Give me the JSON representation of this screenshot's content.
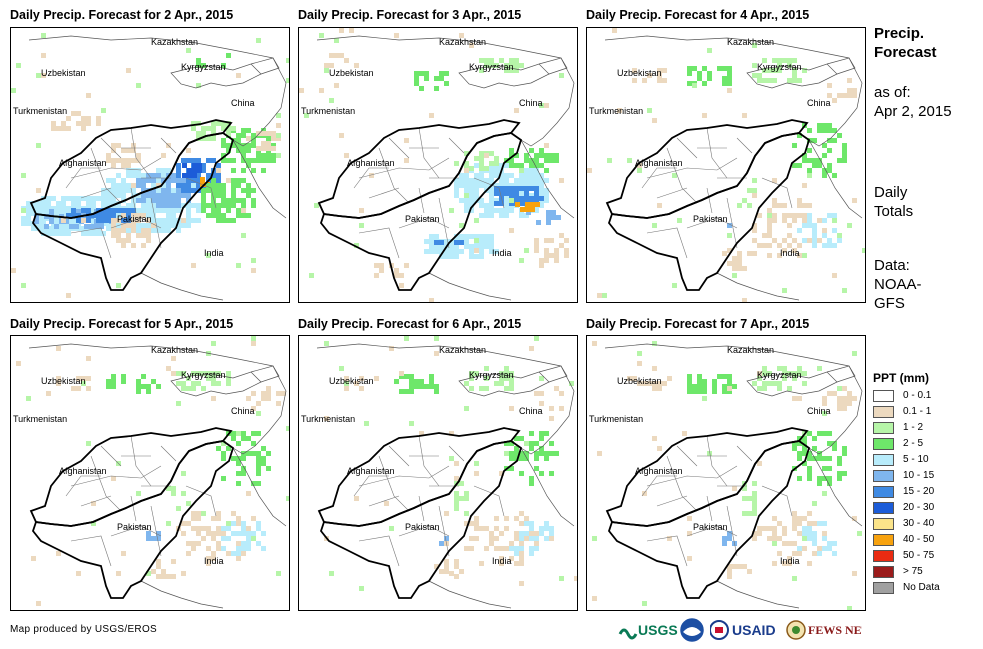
{
  "panels": [
    {
      "title": "Daily Precip. Forecast for 2 Apr., 2015",
      "intensity": "heavy"
    },
    {
      "title": "Daily Precip. Forecast for 3 Apr., 2015",
      "intensity": "moderate"
    },
    {
      "title": "Daily Precip. Forecast for 4 Apr., 2015",
      "intensity": "light"
    },
    {
      "title": "Daily Precip. Forecast for 5 Apr., 2015",
      "intensity": "light"
    },
    {
      "title": "Daily Precip. Forecast for 6 Apr., 2015",
      "intensity": "light"
    },
    {
      "title": "Daily Precip. Forecast for 7 Apr., 2015",
      "intensity": "light"
    }
  ],
  "countries": {
    "kazakhstan": "Kazakhstan",
    "uzbekistan": "Uzbekistan",
    "kyrgyzstan": "Kyrgyzstan",
    "turkmenistan": "Turkmenistan",
    "china": "China",
    "afghanistan": "Afghanistan",
    "pakistan": "Pakistan",
    "india": "India"
  },
  "sidebar": {
    "heading_line1": "Precip.",
    "heading_line2": "Forecast",
    "asof_line1": "as of:",
    "asof_line2": "Apr 2, 2015",
    "daily_line1": "Daily",
    "daily_line2": "Totals",
    "data_line1": "Data:",
    "data_line2": "NOAA-",
    "data_line3": "GFS"
  },
  "legend": {
    "title": "PPT (mm)",
    "items": [
      {
        "label": "0 - 0.1",
        "color": "#ffffff"
      },
      {
        "label": "0.1 - 1",
        "color": "#ecd9bf"
      },
      {
        "label": "1 - 2",
        "color": "#b6f5a8"
      },
      {
        "label": "2 - 5",
        "color": "#6ee76a"
      },
      {
        "label": "5 - 10",
        "color": "#b8ecfb"
      },
      {
        "label": "10 - 15",
        "color": "#7fb6ee"
      },
      {
        "label": "15 - 20",
        "color": "#3f8ae3"
      },
      {
        "label": "20 - 30",
        "color": "#1c5cd8"
      },
      {
        "label": "30 - 40",
        "color": "#fbe48a"
      },
      {
        "label": "40 - 50",
        "color": "#f7a20e"
      },
      {
        "label": "50 - 75",
        "color": "#ea2b12"
      },
      {
        "label": "> 75",
        "color": "#9b1b1b"
      },
      {
        "label": "No Data",
        "color": "#a0a0a0"
      }
    ]
  },
  "footer": {
    "credit": "Map produced by USGS/EROS"
  },
  "logos": {
    "usgs": "USGS",
    "usaid": "USAID",
    "fews": "FEWS NET"
  }
}
